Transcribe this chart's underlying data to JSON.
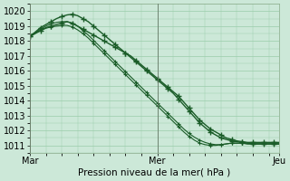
{
  "xlabel": "Pression niveau de la mer( hPa )",
  "xlim": [
    0,
    47
  ],
  "ylim": [
    1010.5,
    1020.5
  ],
  "yticks": [
    1011,
    1012,
    1013,
    1014,
    1015,
    1016,
    1017,
    1018,
    1019,
    1020
  ],
  "xtick_labels": [
    "Mar",
    "Mer",
    "Jeu"
  ],
  "xtick_positions": [
    0,
    24,
    47
  ],
  "bg_color": "#cce8d8",
  "grid_color": "#99ccaa",
  "line_color": "#1a5c28",
  "series": [
    [
      1018.3,
      1018.5,
      1018.7,
      1018.9,
      1019.0,
      1019.1,
      1019.2,
      1019.3,
      1019.2,
      1019.0,
      1018.8,
      1018.6,
      1018.4,
      1018.2,
      1018.0,
      1017.8,
      1017.6,
      1017.4,
      1017.2,
      1017.0,
      1016.7,
      1016.4,
      1016.1,
      1015.8,
      1015.5,
      1015.2,
      1014.9,
      1014.6,
      1014.3,
      1013.9,
      1013.5,
      1013.1,
      1012.7,
      1012.4,
      1012.1,
      1011.9,
      1011.7,
      1011.5,
      1011.4,
      1011.3,
      1011.25,
      1011.2,
      1011.2,
      1011.2,
      1011.2,
      1011.2,
      1011.2,
      1011.2
    ],
    [
      1018.3,
      1018.6,
      1018.9,
      1019.1,
      1019.3,
      1019.5,
      1019.65,
      1019.75,
      1019.8,
      1019.7,
      1019.5,
      1019.3,
      1019.0,
      1018.7,
      1018.4,
      1018.1,
      1017.8,
      1017.5,
      1017.2,
      1016.9,
      1016.6,
      1016.3,
      1016.0,
      1015.7,
      1015.4,
      1015.1,
      1014.8,
      1014.5,
      1014.1,
      1013.7,
      1013.3,
      1012.9,
      1012.5,
      1012.2,
      1011.9,
      1011.7,
      1011.5,
      1011.4,
      1011.3,
      1011.25,
      1011.2,
      1011.15,
      1011.1,
      1011.1,
      1011.1,
      1011.1,
      1011.1,
      1011.1
    ],
    [
      1018.4,
      1018.55,
      1018.7,
      1018.85,
      1018.95,
      1019.0,
      1019.05,
      1019.05,
      1018.95,
      1018.75,
      1018.5,
      1018.2,
      1017.85,
      1017.5,
      1017.15,
      1016.8,
      1016.45,
      1016.1,
      1015.75,
      1015.4,
      1015.05,
      1014.7,
      1014.35,
      1014.0,
      1013.65,
      1013.3,
      1012.95,
      1012.6,
      1012.25,
      1011.9,
      1011.6,
      1011.35,
      1011.15,
      1011.05,
      1011.0,
      1011.0,
      1011.05,
      1011.1,
      1011.15,
      1011.15,
      1011.15,
      1011.1,
      1011.1,
      1011.1,
      1011.1,
      1011.1,
      1011.1,
      1011.1
    ],
    [
      1018.3,
      1018.55,
      1018.8,
      1019.0,
      1019.15,
      1019.25,
      1019.3,
      1019.3,
      1019.2,
      1019.0,
      1018.7,
      1018.4,
      1018.05,
      1017.7,
      1017.35,
      1017.0,
      1016.65,
      1016.3,
      1015.95,
      1015.6,
      1015.25,
      1014.9,
      1014.55,
      1014.2,
      1013.85,
      1013.5,
      1013.15,
      1012.8,
      1012.45,
      1012.1,
      1011.8,
      1011.55,
      1011.35,
      1011.2,
      1011.1,
      1011.05,
      1011.05,
      1011.1,
      1011.15,
      1011.15,
      1011.15,
      1011.1,
      1011.1,
      1011.1,
      1011.1,
      1011.1,
      1011.1,
      1011.1
    ]
  ]
}
